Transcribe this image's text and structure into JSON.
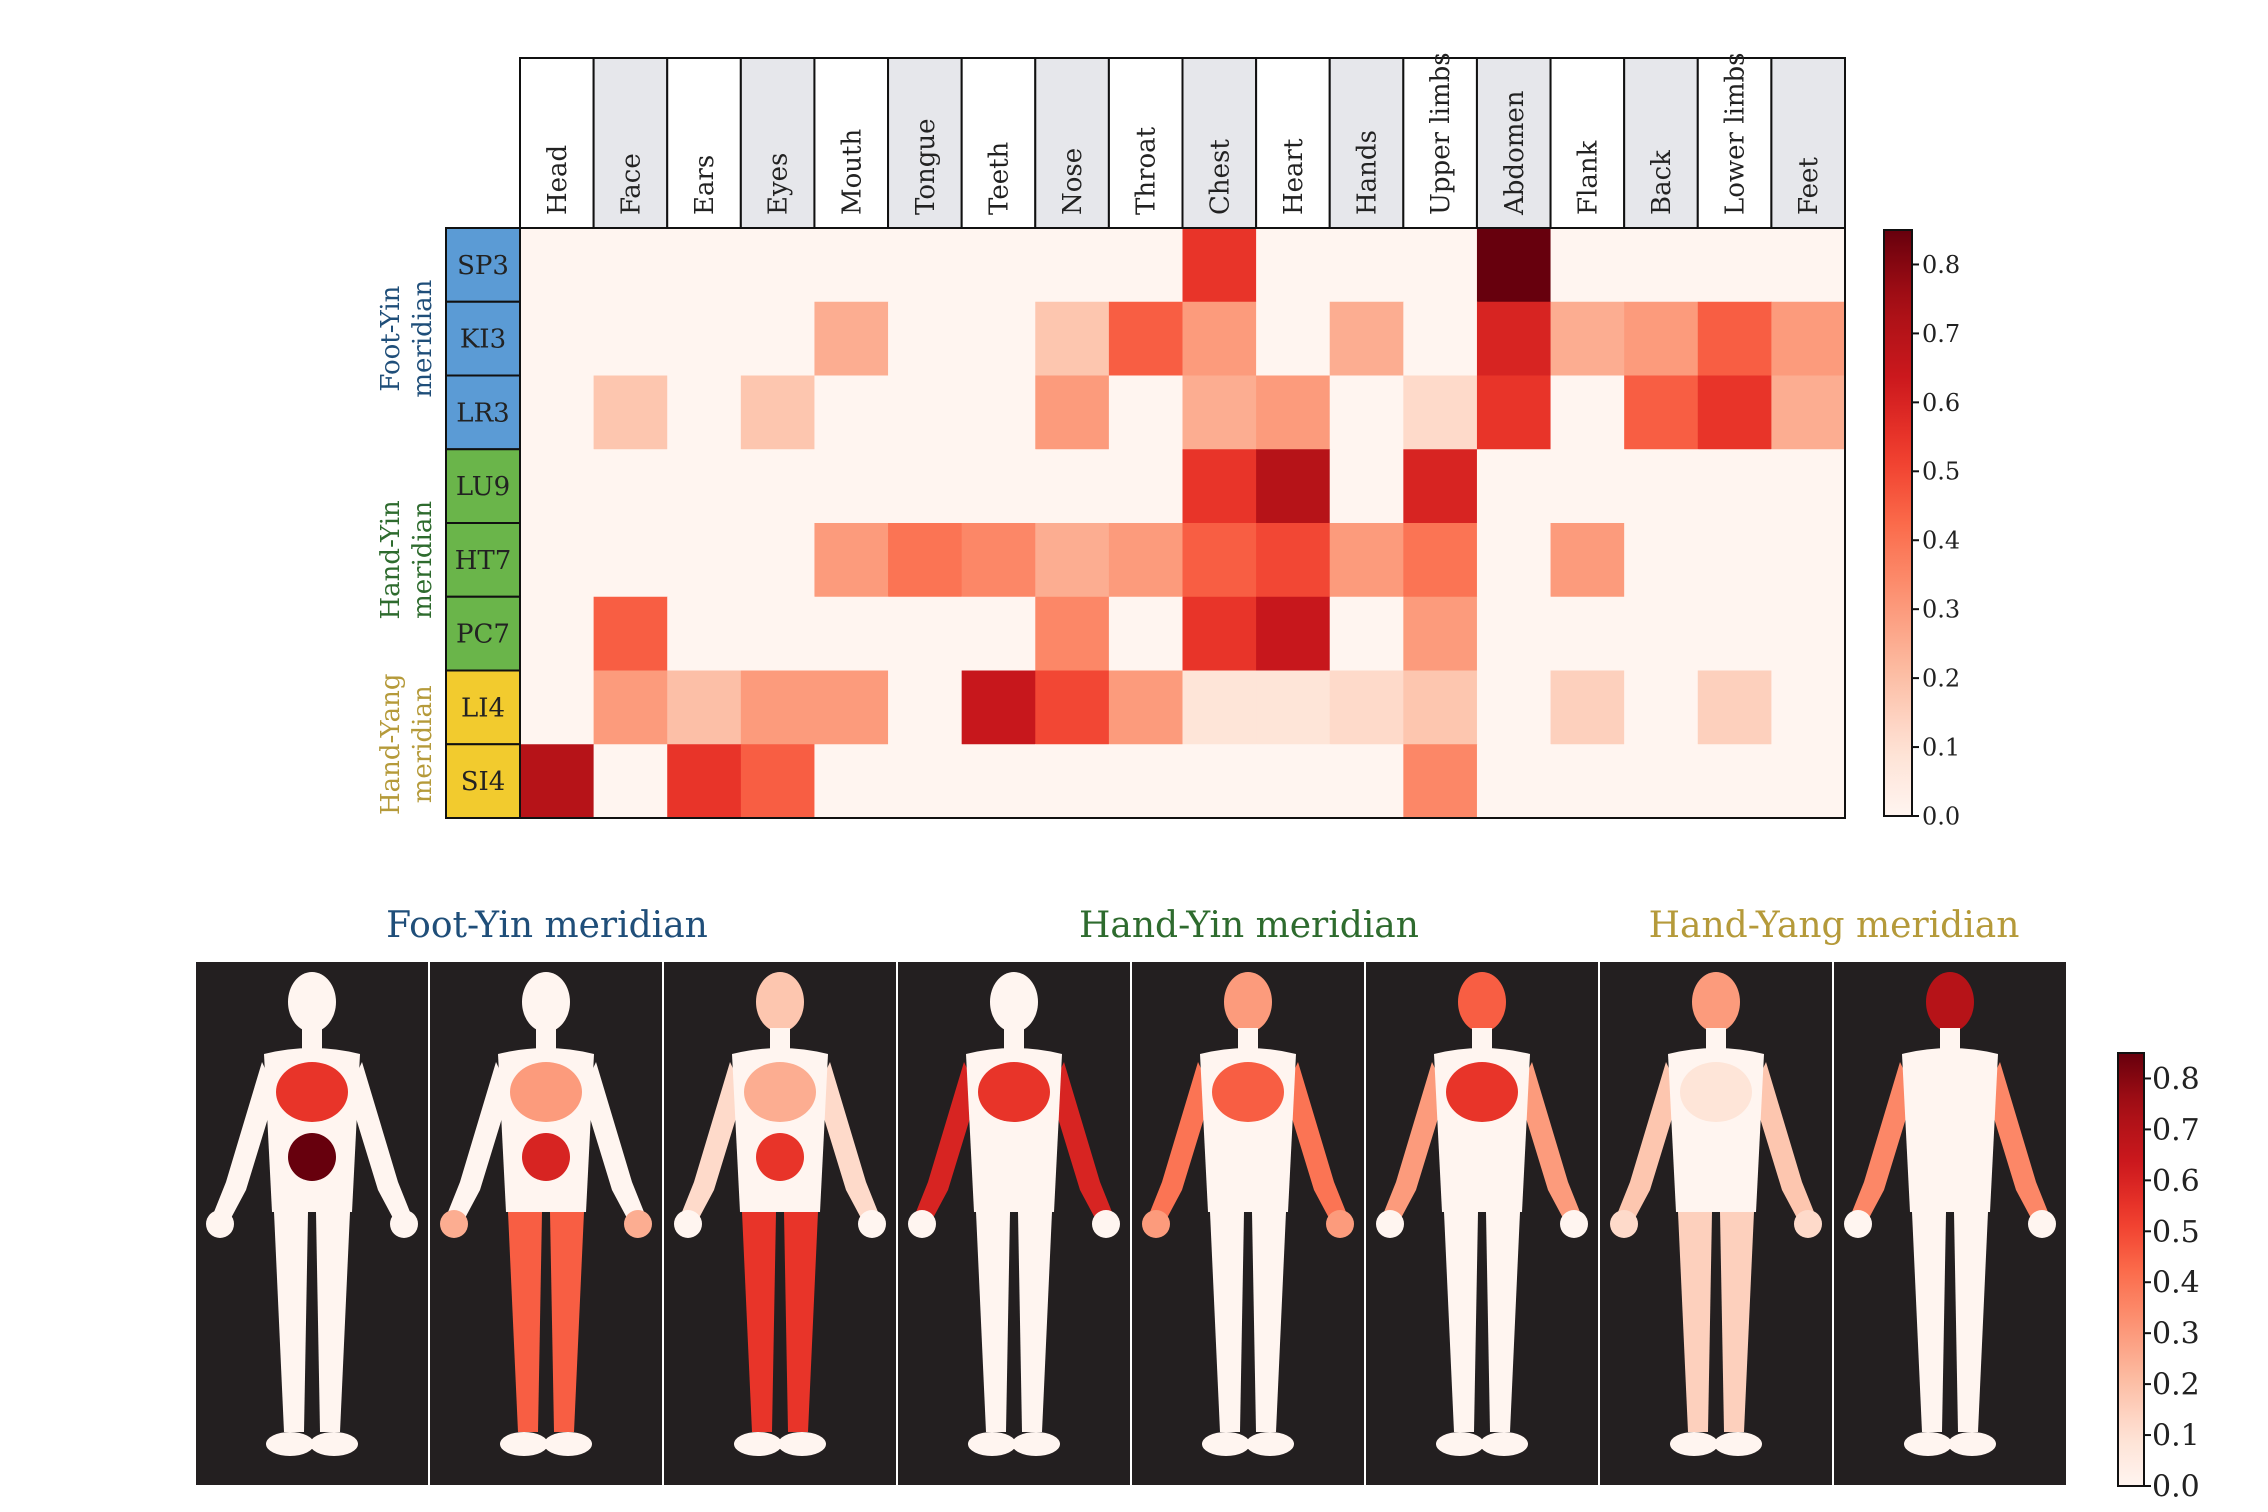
{
  "chart_data": [
    {
      "type": "heatmap",
      "columns": [
        "Head",
        "Face",
        "Ears",
        "Eyes",
        "Mouth",
        "Tongue",
        "Teeth",
        "Nose",
        "Throat",
        "Chest",
        "Heart",
        "Hands",
        "Upper limbs",
        "Abdomen",
        "Flank",
        "Back",
        "Lower limbs",
        "Feet"
      ],
      "rows": [
        "SP3",
        "KI3",
        "LR3",
        "LU9",
        "HT7",
        "PC7",
        "LI4",
        "SI4"
      ],
      "row_groups": [
        {
          "label": "Foot-Yin meridian",
          "rows": [
            "SP3",
            "KI3",
            "LR3"
          ],
          "color": "#5b9bd5",
          "text_color": "#1f4e79"
        },
        {
          "label": "Hand-Yin meridian",
          "rows": [
            "LU9",
            "HT7",
            "PC7"
          ],
          "color": "#6ab54a",
          "text_color": "#2e6b2e"
        },
        {
          "label": "Hand-Yang meridian",
          "rows": [
            "LI4",
            "SI4"
          ],
          "color": "#f2cb2e",
          "text_color": "#b59a3a"
        }
      ],
      "values": [
        [
          0,
          0,
          0,
          0,
          0,
          0,
          0,
          0,
          0,
          0.55,
          0,
          0,
          0,
          0.85,
          0,
          0,
          0,
          0
        ],
        [
          0,
          0,
          0,
          0,
          0.25,
          0,
          0,
          0.18,
          0.45,
          0.3,
          0,
          0.25,
          0,
          0.6,
          0.25,
          0.3,
          0.45,
          0.3
        ],
        [
          0,
          0.18,
          0,
          0.18,
          0,
          0,
          0,
          0.3,
          0,
          0.25,
          0.3,
          0,
          0.12,
          0.55,
          0,
          0.45,
          0.55,
          0.25
        ],
        [
          0,
          0,
          0,
          0,
          0,
          0,
          0,
          0,
          0,
          0.55,
          0.7,
          0,
          0.6,
          0,
          0,
          0,
          0,
          0
        ],
        [
          0,
          0,
          0,
          0,
          0.3,
          0.4,
          0.35,
          0.25,
          0.3,
          0.45,
          0.5,
          0.3,
          0.4,
          0,
          0.3,
          0,
          0,
          0
        ],
        [
          0,
          0.45,
          0,
          0,
          0,
          0,
          0,
          0.35,
          0,
          0.55,
          0.65,
          0,
          0.3,
          0,
          0,
          0,
          0,
          0
        ],
        [
          0,
          0.3,
          0.2,
          0.3,
          0.3,
          0,
          0.65,
          0.5,
          0.3,
          0.08,
          0.08,
          0.12,
          0.18,
          0,
          0.15,
          0,
          0.15,
          0
        ],
        [
          0.7,
          0,
          0.55,
          0.45,
          0,
          0,
          0,
          0,
          0,
          0,
          0,
          0,
          0.35,
          0,
          0,
          0,
          0,
          0
        ]
      ],
      "colorbar": {
        "ticks": [
          "0.0",
          "0.1",
          "0.2",
          "0.3",
          "0.4",
          "0.5",
          "0.6",
          "0.7",
          "0.8"
        ],
        "min": 0,
        "max": 0.85
      }
    },
    {
      "type": "heatmap",
      "groups": [
        {
          "label": "Foot-Yin meridian",
          "color": "#5b9bd5",
          "text_color": "#1f4e79",
          "points": [
            "SP3",
            "KI3",
            "LR3"
          ]
        },
        {
          "label": "Hand-Yin meridian",
          "color": "#6ab54a",
          "text_color": "#2e6b2e",
          "points": [
            "LU9",
            "HT7",
            "PC7"
          ]
        },
        {
          "label": "Hand-Yang meridian",
          "color": "#f2cb2e",
          "text_color": "#b59a3a",
          "points": [
            "LI4",
            "SI4"
          ]
        }
      ],
      "panels": [
        "SP3",
        "KI3",
        "LR3",
        "LU9",
        "HT7",
        "PC7",
        "LI4",
        "SI4"
      ],
      "colorbar": {
        "ticks": [
          "0.0",
          "0.1",
          "0.2",
          "0.3",
          "0.4",
          "0.5",
          "0.6",
          "0.7",
          "0.8"
        ],
        "min": 0,
        "max": 0.85
      }
    }
  ]
}
